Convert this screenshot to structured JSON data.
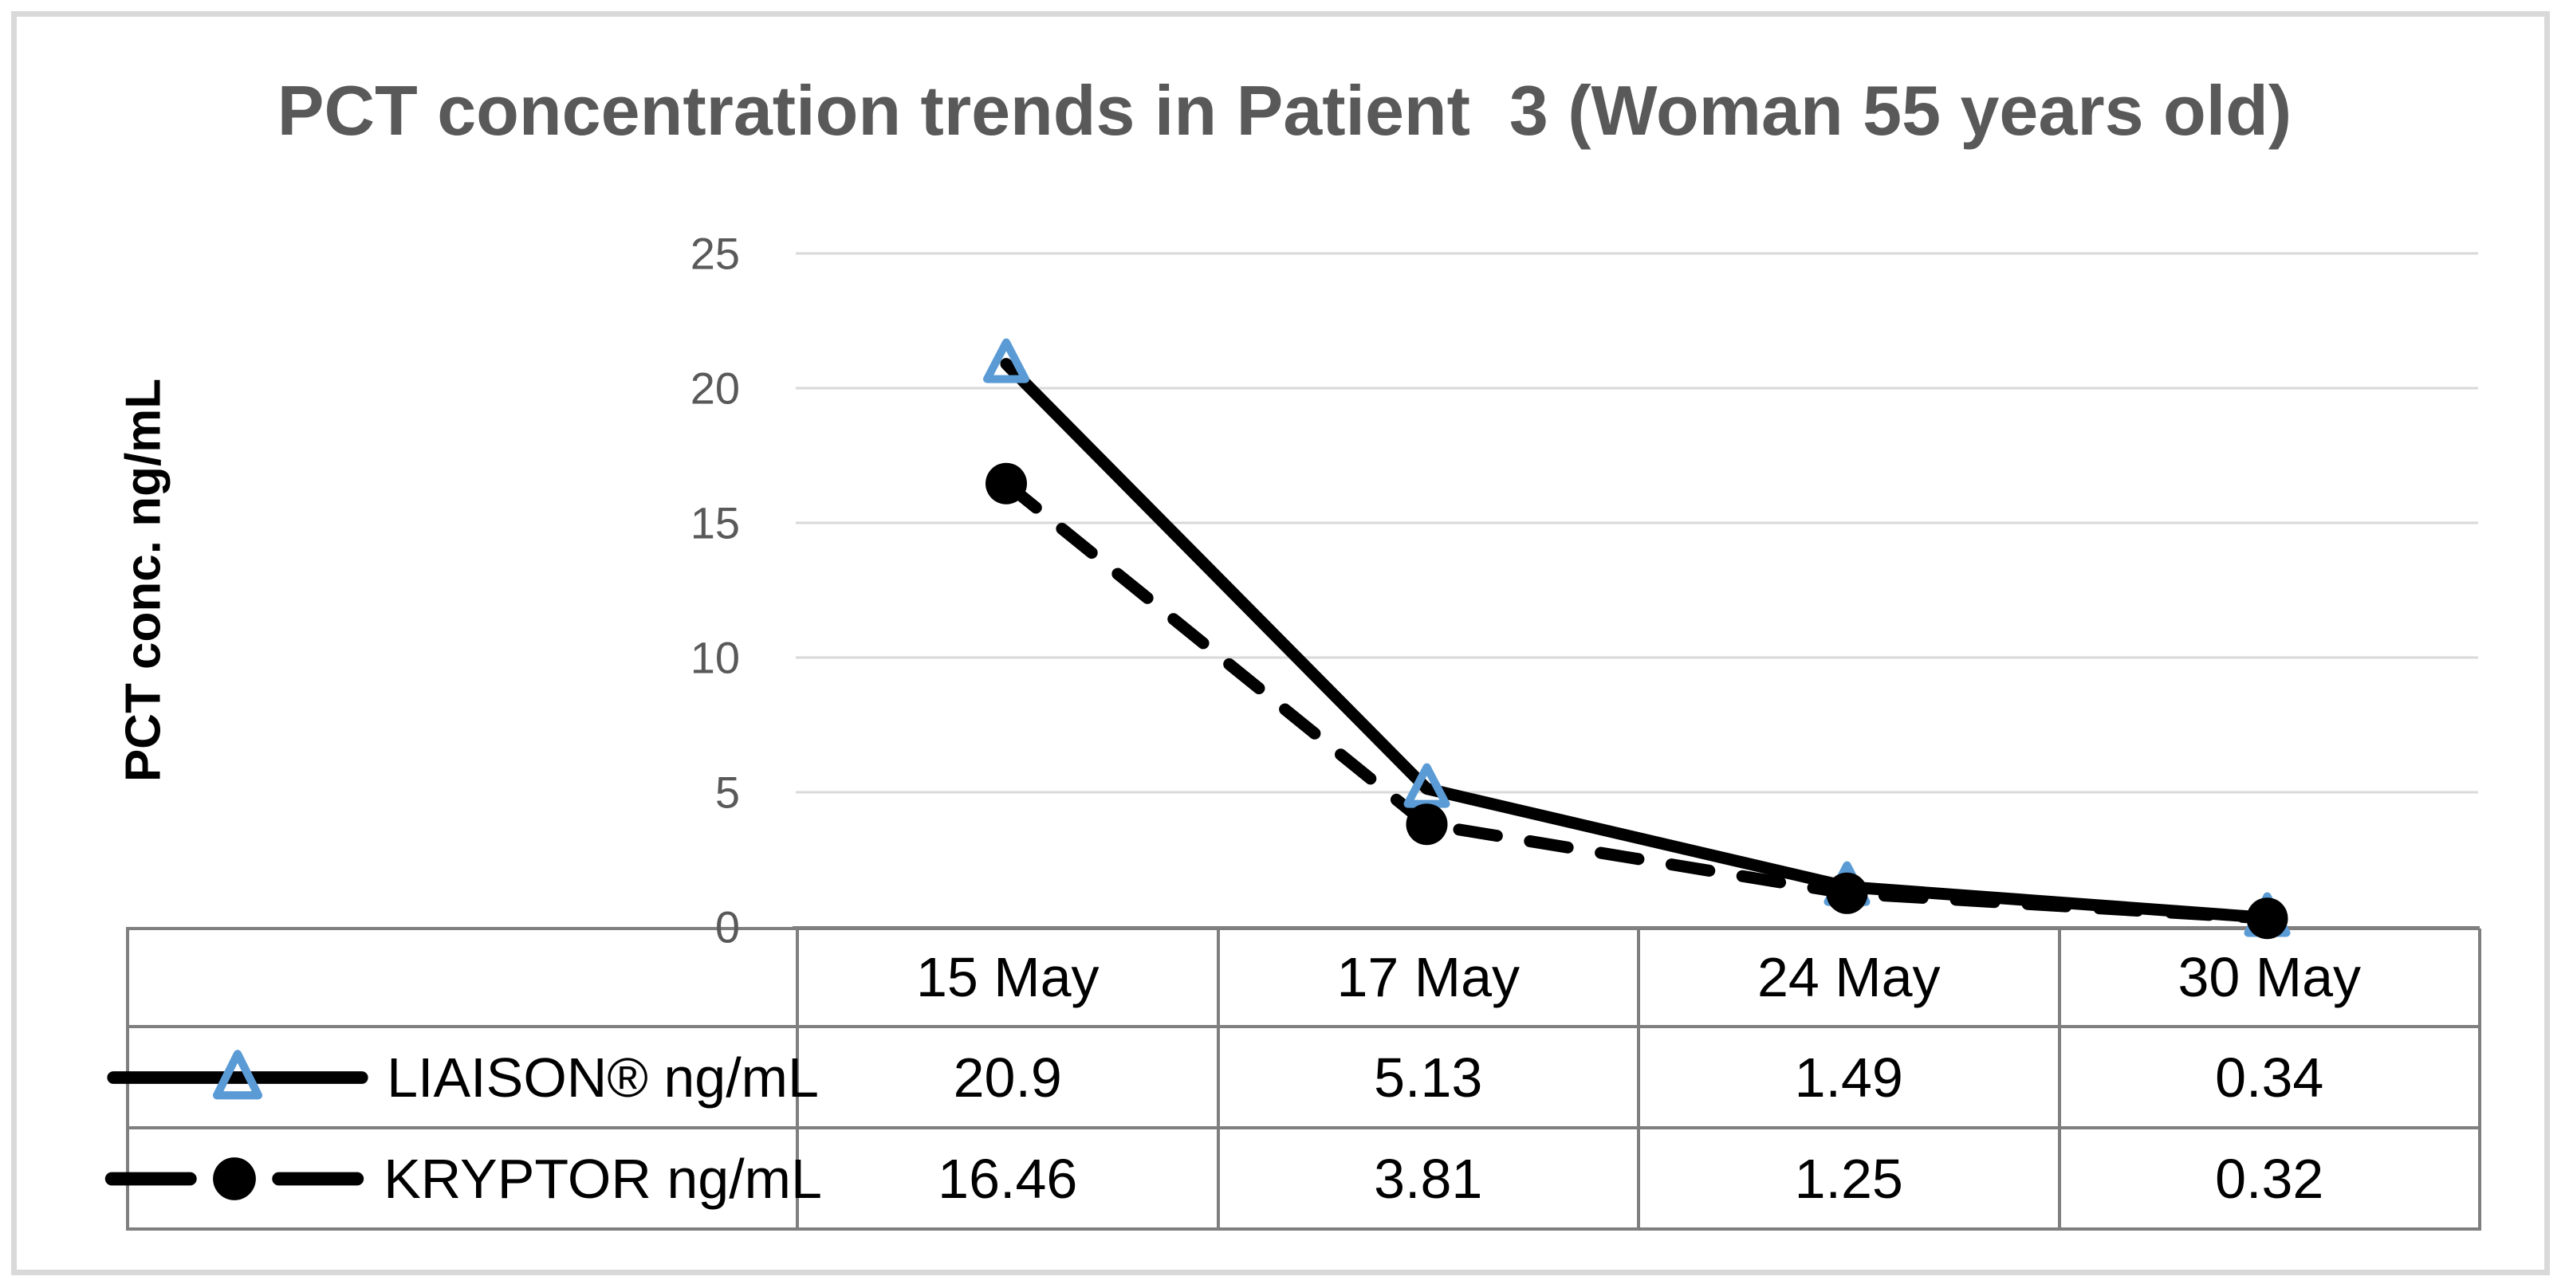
{
  "figure": {
    "kind": "excel-style line chart with data table legend"
  },
  "chart_data": {
    "type": "line",
    "title": "PCT concentration trends in Patient  3 (Woman 55 years old)",
    "xlabel": "",
    "ylabel": "PCT conc. ng/mL",
    "categories": [
      "15 May",
      "17 May",
      "24 May",
      "30 May"
    ],
    "series": [
      {
        "name": "LIAISON® ng/mL",
        "values": [
          20.9,
          5.13,
          1.49,
          0.34
        ],
        "line": "solid",
        "marker": "triangle"
      },
      {
        "name": "KRYPTOR ng/mL",
        "values": [
          16.46,
          3.81,
          1.25,
          0.32
        ],
        "line": "dashed",
        "marker": "circle"
      }
    ],
    "ylim": [
      0,
      25
    ],
    "yticks": [
      25,
      20,
      15,
      10,
      5,
      0
    ],
    "grid": "horizontal",
    "legend_position": "table-rows-left"
  },
  "colors": {
    "series_line": "#000000",
    "marker_accent": "#5B9BD5",
    "gridline": "#D9D9D9",
    "axis_and_table_border": "#7F7F7F",
    "title_text": "#595959",
    "tick_text": "#595959",
    "table_text": "#000000",
    "outer_frame": "#D9D9D9",
    "background": "#FFFFFF"
  }
}
